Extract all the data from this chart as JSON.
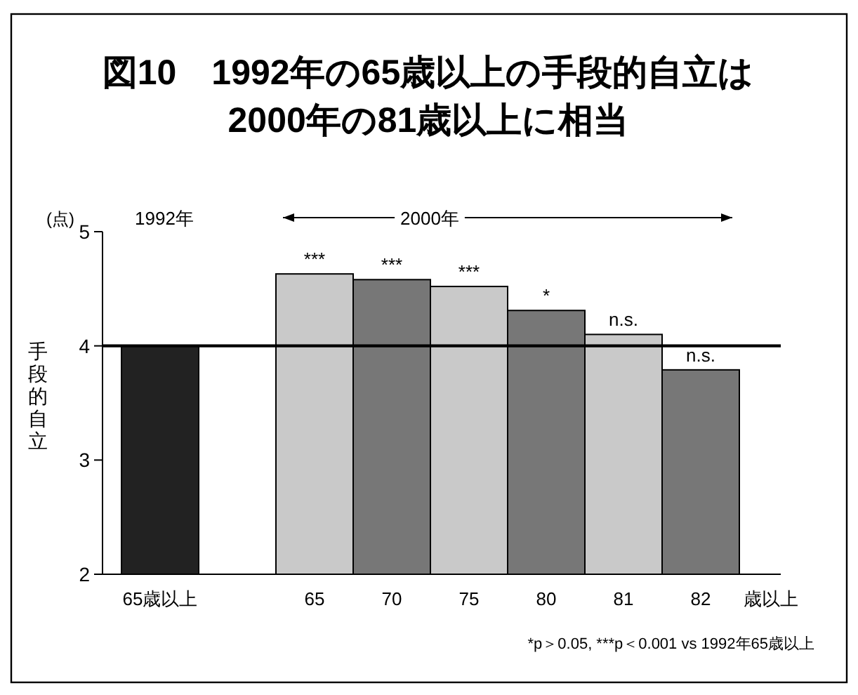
{
  "chart_data": {
    "type": "bar",
    "title": "図10　1992年の65歳以上の手段的自立は\n2000年の81歳以上に相当",
    "categories": [
      "65歳以上",
      null,
      "65",
      "70",
      "75",
      "80",
      "81",
      "82"
    ],
    "values": [
      4.0,
      null,
      4.63,
      4.58,
      4.52,
      4.31,
      4.1,
      3.79
    ],
    "colors": [
      "#222222",
      null,
      "#c9c9c9",
      "#777777",
      "#c9c9c9",
      "#777777",
      "#c9c9c9",
      "#777777"
    ],
    "value_labels": [
      null,
      null,
      "***",
      "***",
      "***",
      "*",
      "n.s.",
      "n.s."
    ],
    "xlabel": "歳以上",
    "ylabel": "手段的自立",
    "ylim": [
      2,
      5
    ],
    "yticks": [
      2,
      3,
      4,
      5
    ],
    "grid": false,
    "ref_lines": [
      {
        "axis": "y",
        "value": 4,
        "color": "#000000"
      }
    ],
    "annotations": [
      "(点)",
      "1992年",
      "2000年",
      "*p＞0.05, ***p＜0.001 vs 1992年65歳以上"
    ]
  }
}
